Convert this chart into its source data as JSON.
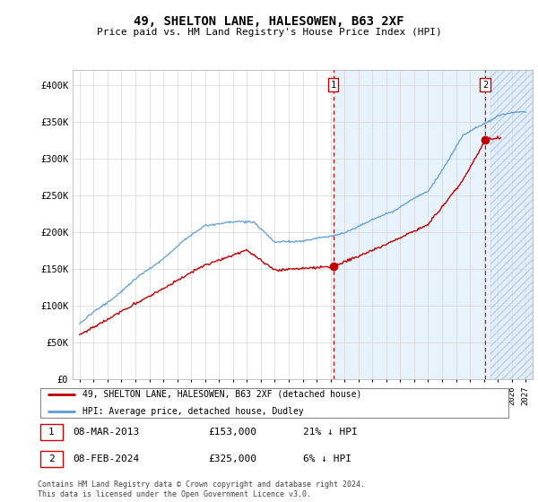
{
  "title": "49, SHELTON LANE, HALESOWEN, B63 2XF",
  "subtitle": "Price paid vs. HM Land Registry's House Price Index (HPI)",
  "ylim": [
    0,
    420000
  ],
  "yticks": [
    0,
    50000,
    100000,
    150000,
    200000,
    250000,
    300000,
    350000,
    400000
  ],
  "ytick_labels": [
    "£0",
    "£50K",
    "£100K",
    "£150K",
    "£200K",
    "£250K",
    "£300K",
    "£350K",
    "£400K"
  ],
  "x_start_year": 1995,
  "x_end_year": 2027,
  "hpi_color": "#5b9bd5",
  "price_color": "#c00000",
  "marker1_date": 2013.2,
  "marker1_price": 153000,
  "marker2_date": 2024.1,
  "marker2_price": 325000,
  "legend_line1": "49, SHELTON LANE, HALESOWEN, B63 2XF (detached house)",
  "legend_line2": "HPI: Average price, detached house, Dudley",
  "footer": "Contains HM Land Registry data © Crown copyright and database right 2024.\nThis data is licensed under the Open Government Licence v3.0.",
  "grid_color": "#cccccc",
  "box_color": "#cc0000",
  "fill_color": "#ddeeff",
  "hatch_color": "#bbccdd"
}
